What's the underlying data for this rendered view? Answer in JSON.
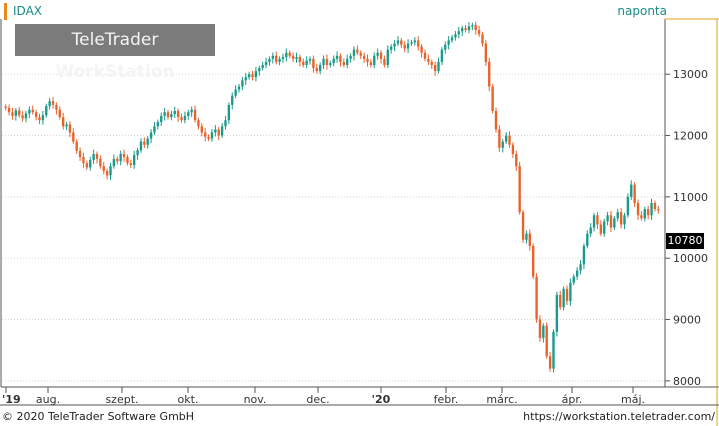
{
  "header": {
    "symbol": "IDAX",
    "period": "naponta"
  },
  "logo": {
    "part1": "TeleTrader",
    "part2": "WorkStation"
  },
  "last_value": "10780",
  "footer": {
    "copyright": "© 2020 TeleTrader Software GmbH",
    "url": "https://workstation.teletrader.com/"
  },
  "colors": {
    "up": "#1a9a8a",
    "down": "#e8622a",
    "text_accent": "#1a8a87",
    "frame_accent": "#e8a01a"
  },
  "chart_data": {
    "type": "candlestick",
    "x_tick_labels": [
      "'19",
      "aug.",
      "szept.",
      "okt.",
      "nov.",
      "dec.",
      "'20",
      "febr.",
      "márc.",
      "ápr.",
      "máj."
    ],
    "y_tick_labels": [
      "8000",
      "9000",
      "10000",
      "11000",
      "12000",
      "13000"
    ],
    "ylim": [
      7900,
      13900
    ],
    "grid": true,
    "series": [
      {
        "values": [
          12450,
          12380,
          12320,
          12410,
          12330,
          12280,
          12360,
          12420,
          12380,
          12300,
          12250,
          12330,
          12480,
          12560,
          12500,
          12420,
          12300,
          12150,
          12180,
          12050,
          11900,
          11750,
          11650,
          11550,
          11480,
          11600,
          11700,
          11620,
          11500,
          11420,
          11350,
          11500,
          11620,
          11580,
          11700,
          11650,
          11550,
          11520,
          11680,
          11760,
          11900,
          11850,
          11950,
          12050,
          12150,
          12220,
          12320,
          12380,
          12300,
          12350,
          12400,
          12300,
          12250,
          12320,
          12380,
          12420,
          12250,
          12150,
          12050,
          11980,
          11950,
          12050,
          12100,
          12000,
          12150,
          12250,
          12500,
          12650,
          12750,
          12800,
          12900,
          12950,
          13000,
          12950,
          13050,
          13100,
          13150,
          13200,
          13250,
          13300,
          13200,
          13250,
          13280,
          13350,
          13300,
          13250,
          13280,
          13200,
          13150,
          13220,
          13250,
          13100,
          13050,
          13150,
          13250,
          13150,
          13180,
          13250,
          13300,
          13200,
          13150,
          13250,
          13300,
          13400,
          13350,
          13300,
          13250,
          13200,
          13150,
          13300,
          13350,
          13250,
          13150,
          13400,
          13450,
          13500,
          13550,
          13480,
          13420,
          13500,
          13520,
          13550,
          13450,
          13350,
          13250,
          13200,
          13150,
          13050,
          13200,
          13400,
          13480,
          13550,
          13600,
          13650,
          13700,
          13750,
          13720,
          13780,
          13800,
          13720,
          13650,
          13500,
          13200,
          12800,
          12400,
          12100,
          11800,
          11900,
          12000,
          11850,
          11700,
          11500,
          10750,
          10300,
          10400,
          10200,
          9700,
          9000,
          8700,
          8900,
          8400,
          8200,
          8800,
          9400,
          9200,
          9500,
          9300,
          9600,
          9700,
          9800,
          9900,
          10200,
          10400,
          10500,
          10700,
          10550,
          10400,
          10600,
          10700,
          10500,
          10650,
          10750,
          10550,
          10700,
          11000,
          11200,
          10900,
          10700,
          10650,
          10800,
          10700,
          10900,
          10800,
          10780
        ]
      }
    ]
  }
}
